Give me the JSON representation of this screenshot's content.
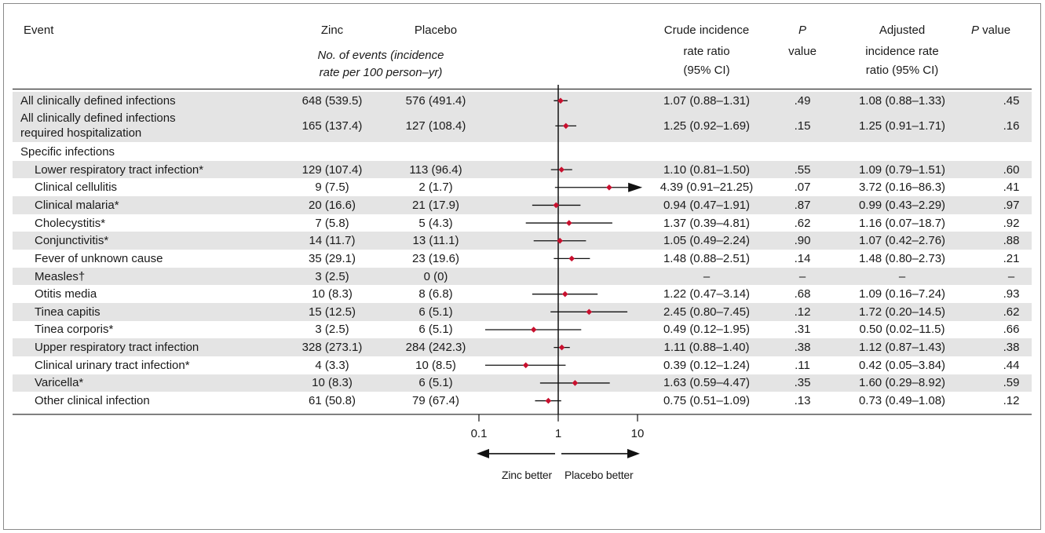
{
  "headers": {
    "event": "Event",
    "zinc": "Zinc",
    "placebo": "Placebo",
    "counts_sub_1": "No. of events (incidence",
    "counts_sub_2": "rate per 100 person–yr)",
    "crude_1": "Crude incidence",
    "crude_2": "rate ratio",
    "crude_3": "(95% CI)",
    "p1_1": "P",
    "p1_2": "value",
    "adj_1": "Adjusted",
    "adj_2": "incidence rate",
    "adj_3": "ratio (95% CI)",
    "p2_1": "P",
    "p2_2": " value"
  },
  "chart_data": {
    "type": "forest",
    "x_scale": "log10",
    "xlim": [
      0.1,
      10
    ],
    "x_ticks": [
      0.1,
      1,
      10
    ],
    "x_tick_labels": [
      "0.1",
      "1",
      "10"
    ],
    "reference_line": 1,
    "left_label": "Zinc better",
    "right_label": "Placebo better",
    "marker_color": "#c8102e",
    "rows": [
      {
        "event": "All clinically defined infections",
        "indent": false,
        "shade": true,
        "zinc": "648 (539.5)",
        "placebo": "576 (491.4)",
        "crude": "1.07 (0.88–1.31)",
        "p_crude": ".49",
        "adjusted": "1.08 (0.88–1.33)",
        "p_adj": ".45",
        "est": 1.07,
        "lo": 0.88,
        "hi": 1.31
      },
      {
        "event": "All clinically defined infections",
        "event_2": "required hospitalization",
        "indent": false,
        "shade": true,
        "tall": true,
        "zinc": "165 (137.4)",
        "placebo": "127 (108.4)",
        "crude": "1.25 (0.92–1.69)",
        "p_crude": ".15",
        "adjusted": "1.25 (0.91–1.71)",
        "p_adj": ".16",
        "est": 1.25,
        "lo": 0.92,
        "hi": 1.69
      },
      {
        "event": "Specific infections",
        "indent": false,
        "shade": false,
        "zinc": "",
        "placebo": "",
        "crude": "",
        "p_crude": "",
        "adjusted": "",
        "p_adj": ""
      },
      {
        "event": "Lower respiratory tract infection*",
        "indent": true,
        "shade": true,
        "zinc": "129 (107.4)",
        "placebo": "113 (96.4)",
        "crude": "1.10 (0.81–1.50)",
        "p_crude": ".55",
        "adjusted": "1.09 (0.79–1.51)",
        "p_adj": ".60",
        "est": 1.1,
        "lo": 0.81,
        "hi": 1.5
      },
      {
        "event": "Clinical cellulitis",
        "indent": true,
        "shade": false,
        "zinc": "9 (7.5)",
        "placebo": "2 (1.7)",
        "crude": "4.39 (0.91–21.25)",
        "p_crude": ".07",
        "adjusted": "3.72 (0.16–86.3)",
        "p_adj": ".41",
        "est": 4.39,
        "lo": 0.91,
        "hi": 21.25,
        "arrow_right": true
      },
      {
        "event": "Clinical malaria*",
        "indent": true,
        "shade": true,
        "zinc": "20 (16.6)",
        "placebo": "21 (17.9)",
        "crude": "0.94 (0.47–1.91)",
        "p_crude": ".87",
        "adjusted": "0.99 (0.43–2.29)",
        "p_adj": ".97",
        "est": 0.94,
        "lo": 0.47,
        "hi": 1.91
      },
      {
        "event": "Cholecystitis*",
        "indent": true,
        "shade": false,
        "zinc": "7 (5.8)",
        "placebo": "5 (4.3)",
        "crude": "1.37 (0.39–4.81)",
        "p_crude": ".62",
        "adjusted": "1.16 (0.07–18.7)",
        "p_adj": ".92",
        "est": 1.37,
        "lo": 0.39,
        "hi": 4.81
      },
      {
        "event": "Conjunctivitis*",
        "indent": true,
        "shade": true,
        "zinc": "14 (11.7)",
        "placebo": "13 (11.1)",
        "crude": "1.05 (0.49–2.24)",
        "p_crude": ".90",
        "adjusted": "1.07 (0.42–2.76)",
        "p_adj": ".88",
        "est": 1.05,
        "lo": 0.49,
        "hi": 2.24
      },
      {
        "event": "Fever of unknown cause",
        "indent": true,
        "shade": false,
        "zinc": "35 (29.1)",
        "placebo": "23 (19.6)",
        "crude": "1.48 (0.88–2.51)",
        "p_crude": ".14",
        "adjusted": "1.48 (0.80–2.73)",
        "p_adj": ".21",
        "est": 1.48,
        "lo": 0.88,
        "hi": 2.51
      },
      {
        "event": "Measles†",
        "indent": true,
        "shade": true,
        "zinc": "3 (2.5)",
        "placebo": "0 (0)",
        "crude": "–",
        "p_crude": "–",
        "adjusted": "–",
        "p_adj": "–"
      },
      {
        "event": "Otitis media",
        "indent": true,
        "shade": false,
        "zinc": "10 (8.3)",
        "placebo": "8 (6.8)",
        "crude": "1.22 (0.47–3.14)",
        "p_crude": ".68",
        "adjusted": "1.09 (0.16–7.24)",
        "p_adj": ".93",
        "est": 1.22,
        "lo": 0.47,
        "hi": 3.14
      },
      {
        "event": "Tinea capitis",
        "indent": true,
        "shade": true,
        "zinc": "15 (12.5)",
        "placebo": "6 (5.1)",
        "crude": "2.45 (0.80–7.45)",
        "p_crude": ".12",
        "adjusted": "1.72 (0.20–14.5)",
        "p_adj": ".62",
        "est": 2.45,
        "lo": 0.8,
        "hi": 7.45
      },
      {
        "event": "Tinea corporis*",
        "indent": true,
        "shade": false,
        "zinc": "3 (2.5)",
        "placebo": "6 (5.1)",
        "crude": "0.49 (0.12–1.95)",
        "p_crude": ".31",
        "adjusted": "0.50 (0.02–11.5)",
        "p_adj": ".66",
        "est": 0.49,
        "lo": 0.12,
        "hi": 1.95
      },
      {
        "event": "Upper respiratory tract infection",
        "indent": true,
        "shade": true,
        "zinc": "328 (273.1)",
        "placebo": "284 (242.3)",
        "crude": "1.11 (0.88–1.40)",
        "p_crude": ".38",
        "adjusted": "1.12 (0.87–1.43)",
        "p_adj": ".38",
        "est": 1.11,
        "lo": 0.88,
        "hi": 1.4
      },
      {
        "event": "Clinical urinary tract infection*",
        "indent": true,
        "shade": false,
        "zinc": "4 (3.3)",
        "placebo": "10 (8.5)",
        "crude": "0.39 (0.12–1.24)",
        "p_crude": ".11",
        "adjusted": "0.42 (0.05–3.84)",
        "p_adj": ".44",
        "est": 0.39,
        "lo": 0.12,
        "hi": 1.24
      },
      {
        "event": "Varicella*",
        "indent": true,
        "shade": true,
        "zinc": "10 (8.3)",
        "placebo": "6 (5.1)",
        "crude": "1.63 (0.59–4.47)",
        "p_crude": ".35",
        "adjusted": "1.60 (0.29–8.92)",
        "p_adj": ".59",
        "est": 1.63,
        "lo": 0.59,
        "hi": 4.47
      },
      {
        "event": "Other clinical infection",
        "indent": true,
        "shade": false,
        "zinc": "61 (50.8)",
        "placebo": "79 (67.4)",
        "crude": "0.75 (0.51–1.09)",
        "p_crude": ".13",
        "adjusted": "0.73 (0.49–1.08)",
        "p_adj": ".12",
        "est": 0.75,
        "lo": 0.51,
        "hi": 1.09
      }
    ]
  }
}
